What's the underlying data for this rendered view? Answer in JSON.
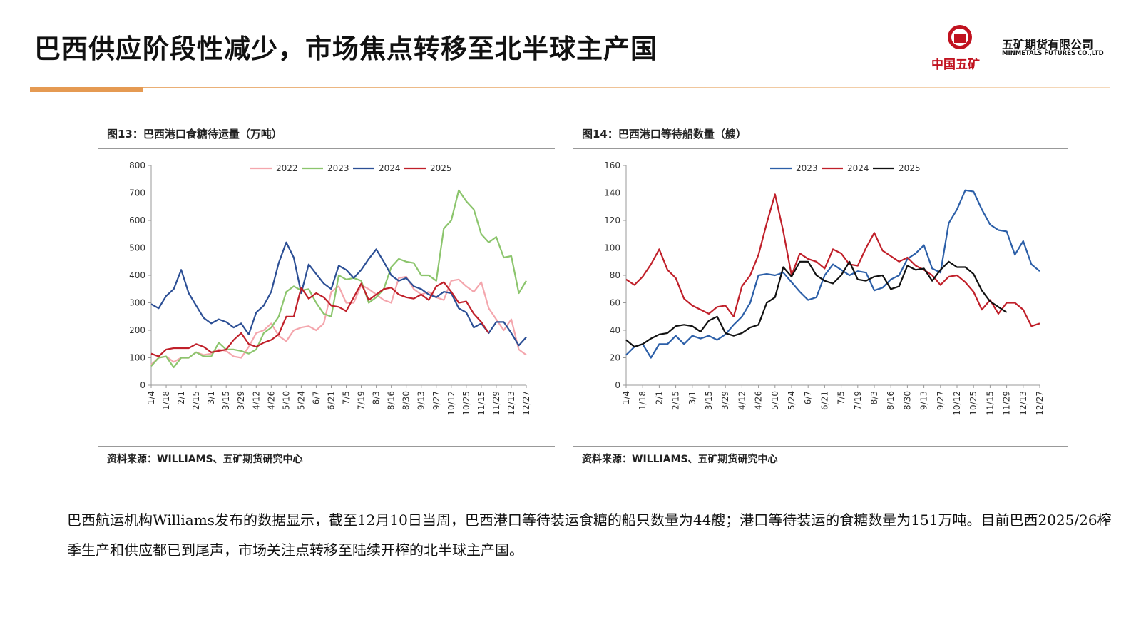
{
  "header": {
    "title": "巴西供应阶段性减少，市场焦点转移至北半球主产国",
    "brand_cn": "中国五矿",
    "brand_name": "五矿期货有限公司",
    "brand_en": "MINMETALS FUTURES CO.,LTD"
  },
  "chart_data": [
    {
      "type": "line",
      "title": "图13：巴西港口食糖待运量（万吨）",
      "source": "资料来源：WILLIAMS、五矿期货研究中心",
      "categories": [
        "1/4",
        null,
        "1/18",
        null,
        "2/1",
        null,
        "2/15",
        null,
        "3/1",
        null,
        "3/15",
        null,
        "3/29",
        null,
        "4/12",
        null,
        "4/26",
        null,
        "5/10",
        null,
        "5/24",
        null,
        "6/7",
        null,
        "6/21",
        null,
        "7/5",
        null,
        "7/19",
        null,
        "8/3",
        null,
        "8/16",
        null,
        "8/30",
        null,
        "9/13",
        null,
        "9/27",
        null,
        "10/12",
        null,
        "10/25",
        null,
        "11/15",
        null,
        "11/29",
        null,
        "12/13",
        null,
        "12/27"
      ],
      "series": [
        {
          "name": "2022",
          "color": "#f4a6ad",
          "values": [
            75,
            100,
            105,
            85,
            100,
            100,
            120,
            110,
            115,
            130,
            125,
            105,
            100,
            140,
            190,
            200,
            225,
            180,
            160,
            200,
            210,
            215,
            200,
            225,
            340,
            360,
            300,
            300,
            365,
            350,
            330,
            310,
            300,
            390,
            395,
            350,
            330,
            340,
            320,
            310,
            380,
            385,
            360,
            340,
            375,
            280,
            240,
            200,
            240,
            130,
            110
          ]
        },
        {
          "name": "2023",
          "color": "#8cc56d",
          "values": [
            70,
            100,
            105,
            65,
            100,
            100,
            120,
            105,
            105,
            155,
            130,
            130,
            125,
            115,
            130,
            190,
            210,
            250,
            340,
            360,
            345,
            350,
            300,
            260,
            250,
            400,
            385,
            390,
            380,
            300,
            320,
            350,
            430,
            460,
            450,
            445,
            400,
            400,
            380,
            570,
            600,
            710,
            670,
            640,
            550,
            520,
            540,
            465,
            470,
            335,
            380
          ]
        },
        {
          "name": "2024",
          "color": "#2c4f95",
          "values": [
            295,
            280,
            325,
            350,
            420,
            335,
            290,
            245,
            225,
            240,
            230,
            210,
            225,
            185,
            265,
            290,
            340,
            445,
            520,
            465,
            335,
            440,
            405,
            370,
            350,
            435,
            420,
            390,
            420,
            460,
            495,
            450,
            400,
            380,
            390,
            360,
            350,
            330,
            320,
            340,
            335,
            280,
            265,
            210,
            225,
            190,
            230,
            230,
            190,
            145,
            175
          ]
        },
        {
          "name": "2025",
          "color": "#c0202a",
          "values": [
            115,
            105,
            130,
            135,
            135,
            135,
            150,
            140,
            120,
            125,
            130,
            165,
            190,
            150,
            140,
            155,
            165,
            185,
            250,
            250,
            355,
            315,
            335,
            320,
            290,
            285,
            270,
            320,
            370,
            310,
            330,
            350,
            355,
            330,
            320,
            315,
            330,
            310,
            360,
            375,
            340,
            300,
            305,
            260,
            230,
            190,
            null,
            null,
            null,
            null,
            null
          ]
        }
      ],
      "ylim": [
        0,
        800
      ],
      "yticks": [
        0,
        100,
        200,
        300,
        400,
        500,
        600,
        700,
        800
      ],
      "legend": "top"
    },
    {
      "type": "line",
      "title": "图14：巴西港口等待船数量（艘）",
      "source": "资料来源：WILLIAMS、五矿期货研究中心",
      "categories": [
        "1/4",
        null,
        "1/18",
        null,
        "2/1",
        null,
        "2/15",
        null,
        "3/1",
        null,
        "3/15",
        null,
        "3/29",
        null,
        "4/12",
        null,
        "4/26",
        null,
        "5/10",
        null,
        "5/24",
        null,
        "6/7",
        null,
        "6/21",
        null,
        "7/5",
        null,
        "7/19",
        null,
        "8/3",
        null,
        "8/16",
        null,
        "8/30",
        null,
        "9/13",
        null,
        "9/27",
        null,
        "10/12",
        null,
        "10/25",
        null,
        "11/15",
        null,
        "11/29",
        null,
        "12/13",
        null,
        "12/27"
      ],
      "series": [
        {
          "name": "2023",
          "color": "#2c5fa8",
          "values": [
            22,
            28,
            30,
            20,
            30,
            30,
            36,
            30,
            36,
            34,
            36,
            33,
            37,
            44,
            50,
            60,
            80,
            81,
            80,
            82,
            75,
            68,
            62,
            64,
            80,
            88,
            84,
            80,
            83,
            82,
            69,
            71,
            77,
            80,
            92,
            96,
            102,
            85,
            82,
            118,
            128,
            142,
            141,
            128,
            117,
            113,
            112,
            95,
            105,
            88,
            83
          ]
        },
        {
          "name": "2024",
          "color": "#c0202a",
          "values": [
            77,
            73,
            79,
            88,
            99,
            84,
            78,
            63,
            58,
            55,
            52,
            57,
            58,
            50,
            72,
            80,
            95,
            118,
            139,
            112,
            80,
            96,
            92,
            90,
            85,
            99,
            96,
            88,
            87,
            100,
            111,
            98,
            94,
            90,
            93,
            87,
            84,
            80,
            73,
            79,
            80,
            75,
            68,
            55,
            62,
            52,
            60,
            60,
            55,
            43,
            45
          ]
        },
        {
          "name": "2025",
          "color": "#111111",
          "values": [
            33,
            28,
            30,
            34,
            37,
            38,
            43,
            44,
            43,
            39,
            47,
            50,
            38,
            36,
            38,
            42,
            44,
            60,
            64,
            86,
            79,
            90,
            90,
            80,
            76,
            74,
            80,
            90,
            77,
            76,
            79,
            80,
            70,
            72,
            87,
            84,
            85,
            76,
            84,
            90,
            86,
            86,
            81,
            69,
            61,
            57,
            53,
            null,
            null,
            null,
            null
          ]
        }
      ],
      "ylim": [
        0,
        160
      ],
      "yticks": [
        0,
        20,
        40,
        60,
        80,
        100,
        120,
        140,
        160
      ],
      "legend": "top"
    }
  ],
  "paragraph": "巴西航运机构Williams发布的数据显示，截至12月10日当周，巴西港口等待装运食糖的船只数量为44艘；港口等待装运的食糖数量为151万吨。目前巴西2025/26榨季生产和供应都已到尾声，市场关注点转移至陆续开榨的北半球主产国。"
}
